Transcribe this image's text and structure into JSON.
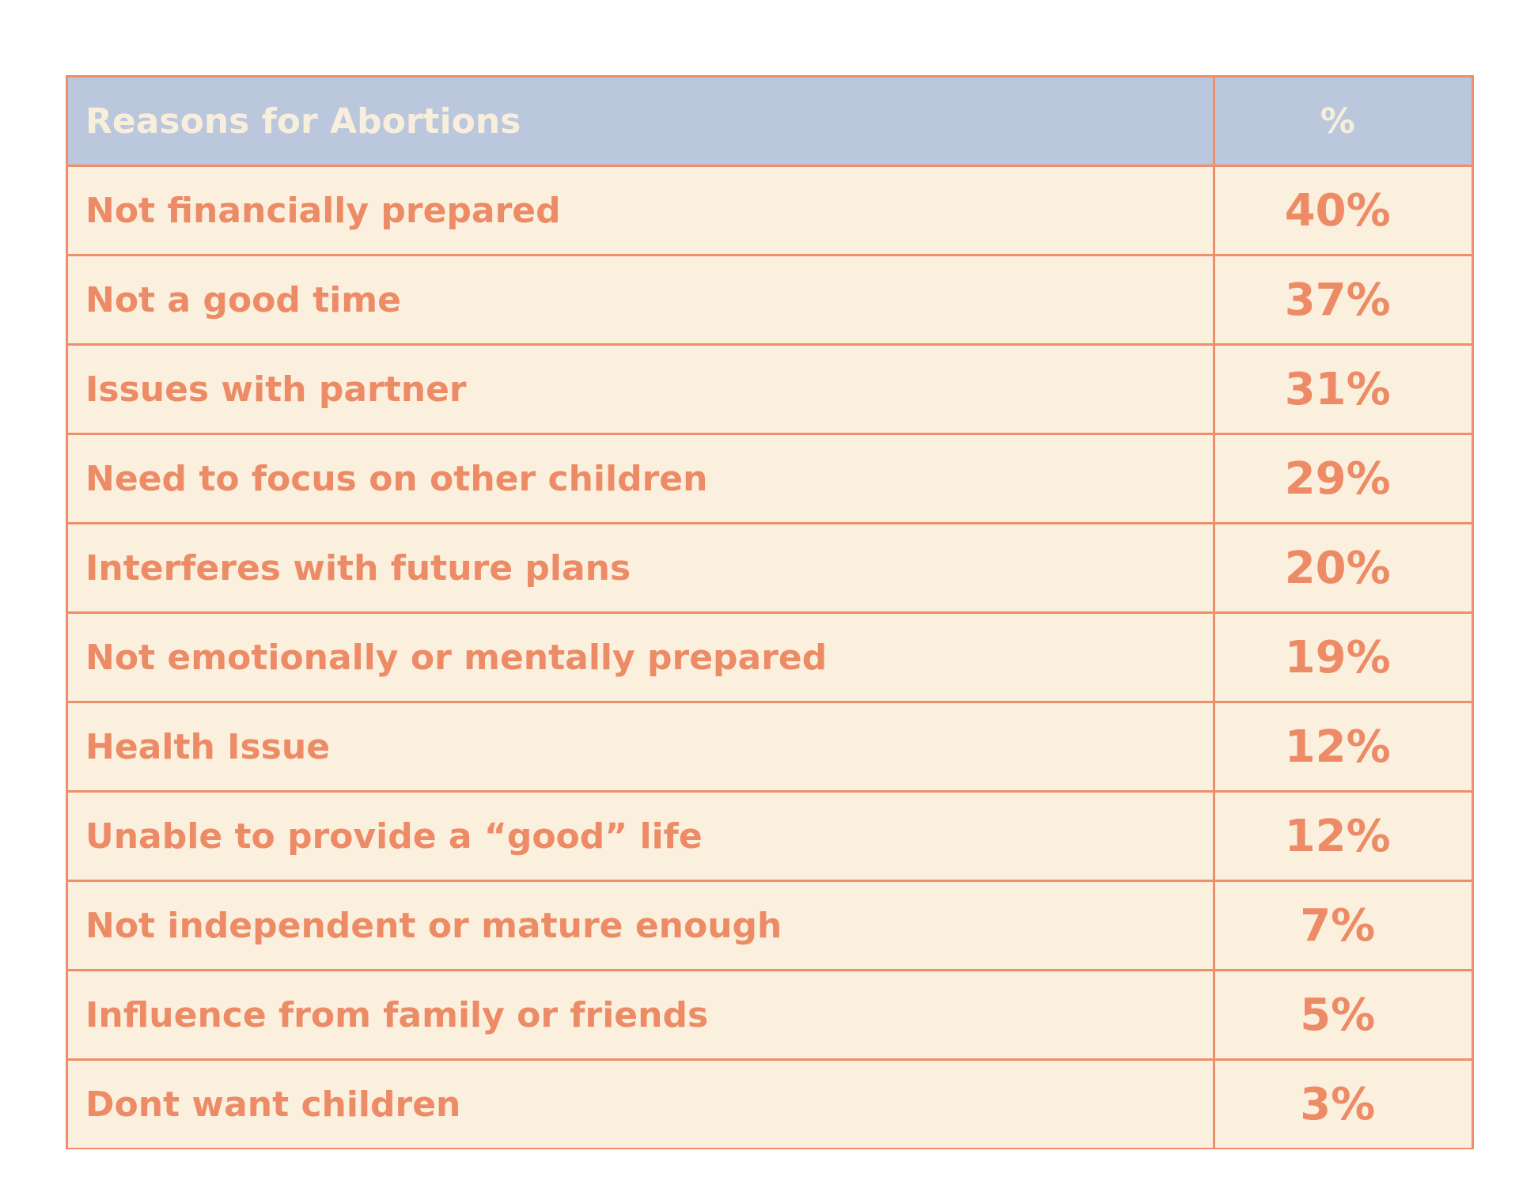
{
  "table": {
    "header": {
      "label": "Reasons for Abortions",
      "value": "%"
    },
    "rows": [
      {
        "label": "Not financially prepared",
        "value": "40%"
      },
      {
        "label": "Not a good time",
        "value": "37%"
      },
      {
        "label": "Issues with partner",
        "value": "31%"
      },
      {
        "label": "Need to focus on other children",
        "value": "29%"
      },
      {
        "label": "Interferes with future plans",
        "value": "20%"
      },
      {
        "label": "Not emotionally or mentally prepared",
        "value": "19%"
      },
      {
        "label": "Health Issue",
        "value": "12%"
      },
      {
        "label": "Unable to provide a “good” life",
        "value": "12%"
      },
      {
        "label": "Not independent or mature enough",
        "value": "7%"
      },
      {
        "label": "Influence from family or friends",
        "value": "5%"
      },
      {
        "label": "Dont want children",
        "value": "3%"
      }
    ]
  },
  "chart_data": {
    "type": "table",
    "columns": [
      "Reasons for Abortions",
      "%"
    ],
    "categories": [
      "Not financially prepared",
      "Not a good time",
      "Issues with partner",
      "Need to focus on other children",
      "Interferes with future plans",
      "Not emotionally or mentally prepared",
      "Health Issue",
      "Unable to provide a “good” life",
      "Not independent or mature enough",
      "Influence from family or friends",
      "Dont want children"
    ],
    "values": [
      40,
      37,
      31,
      29,
      20,
      19,
      12,
      12,
      7,
      5,
      3
    ]
  },
  "colors": {
    "header_bg": "#bbc7dc",
    "header_text": "#f7efdc",
    "cell_bg": "#faf0dd",
    "cell_text": "#ec8b66",
    "border": "#ee8e6a"
  }
}
